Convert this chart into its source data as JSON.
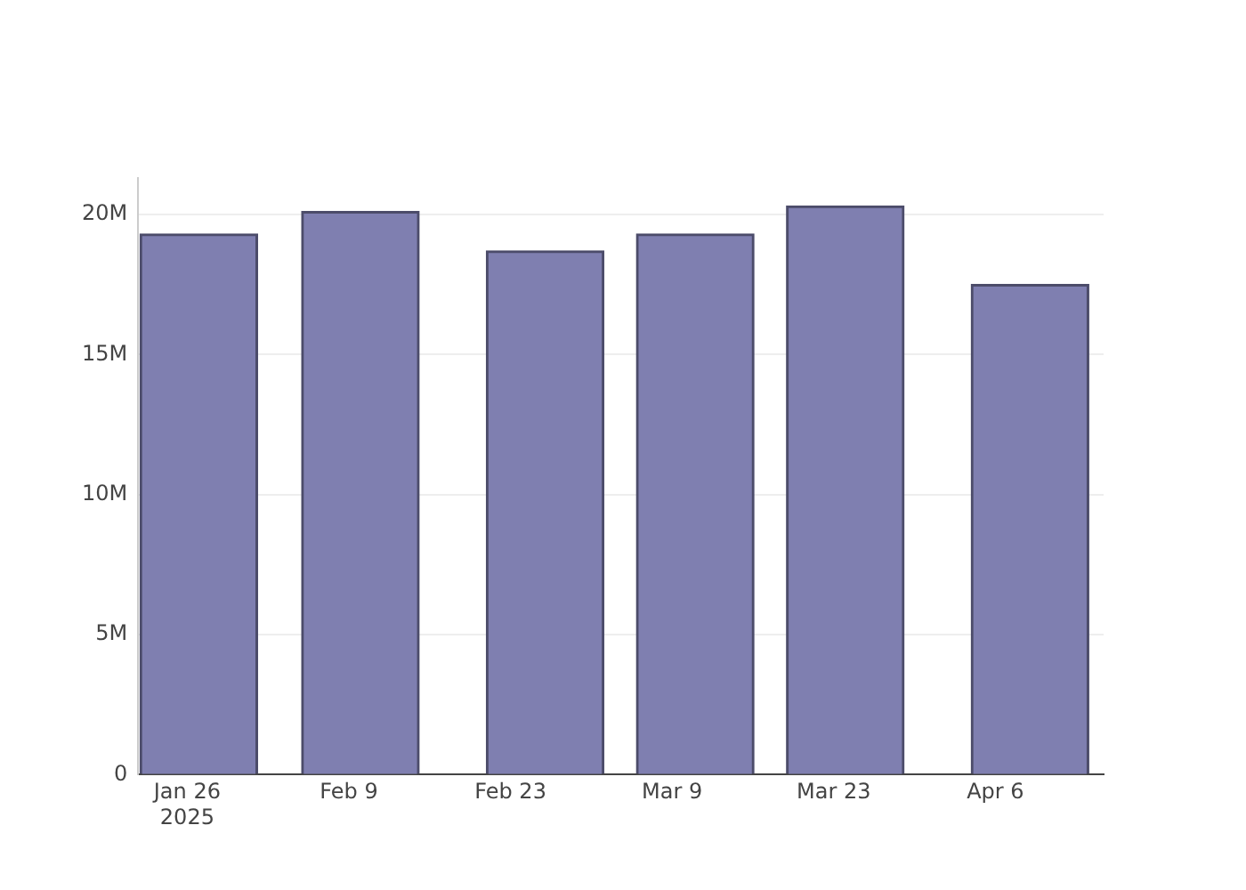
{
  "chart_data": {
    "type": "bar",
    "x": [
      "2025-01-27",
      "2025-02-10",
      "2025-02-26",
      "2025-03-11",
      "2025-03-24",
      "2025-04-09"
    ],
    "values": [
      19300000,
      20100000,
      18700000,
      19300000,
      20300000,
      17500000
    ],
    "color": "#7f7fb0",
    "xlim": [
      "2025-01-21T18:00",
      "2025-04-15T09:00"
    ],
    "xticks": [
      {
        "value": "2025-01-26",
        "label": "Jan 26\n2025"
      },
      {
        "value": "2025-02-09",
        "label": "Feb 9"
      },
      {
        "value": "2025-02-23",
        "label": "Feb 23"
      },
      {
        "value": "2025-03-09",
        "label": "Mar 9"
      },
      {
        "value": "2025-03-23",
        "label": "Mar 23"
      },
      {
        "value": "2025-04-06",
        "label": "Apr 6"
      }
    ],
    "ylim": [
      0,
      21300000
    ],
    "yticks": [
      0,
      {
        "value": 5000000,
        "label": "5M"
      },
      {
        "value": 10000000,
        "label": "10M"
      },
      {
        "value": 15000000,
        "label": "15M"
      },
      {
        "value": 20000000,
        "label": "20M"
      }
    ],
    "grid": "y"
  }
}
